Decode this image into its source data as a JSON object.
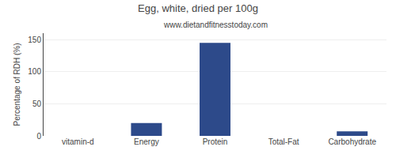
{
  "chart_data": {
    "type": "bar",
    "title": "Egg, white, dried per 100g",
    "subtitle": "www.dietandfitnesstoday.com",
    "categories": [
      "vitamin-d",
      "Energy",
      "Protein",
      "Total-Fat",
      "Carbohydrate"
    ],
    "values": [
      0,
      20,
      145,
      0,
      7
    ],
    "color": "#2d4a8a",
    "ylabel": "Percentage of RDH (%)",
    "ylim": [
      0,
      160
    ],
    "yticks": [
      0,
      50,
      100,
      150
    ],
    "grid": true
  }
}
